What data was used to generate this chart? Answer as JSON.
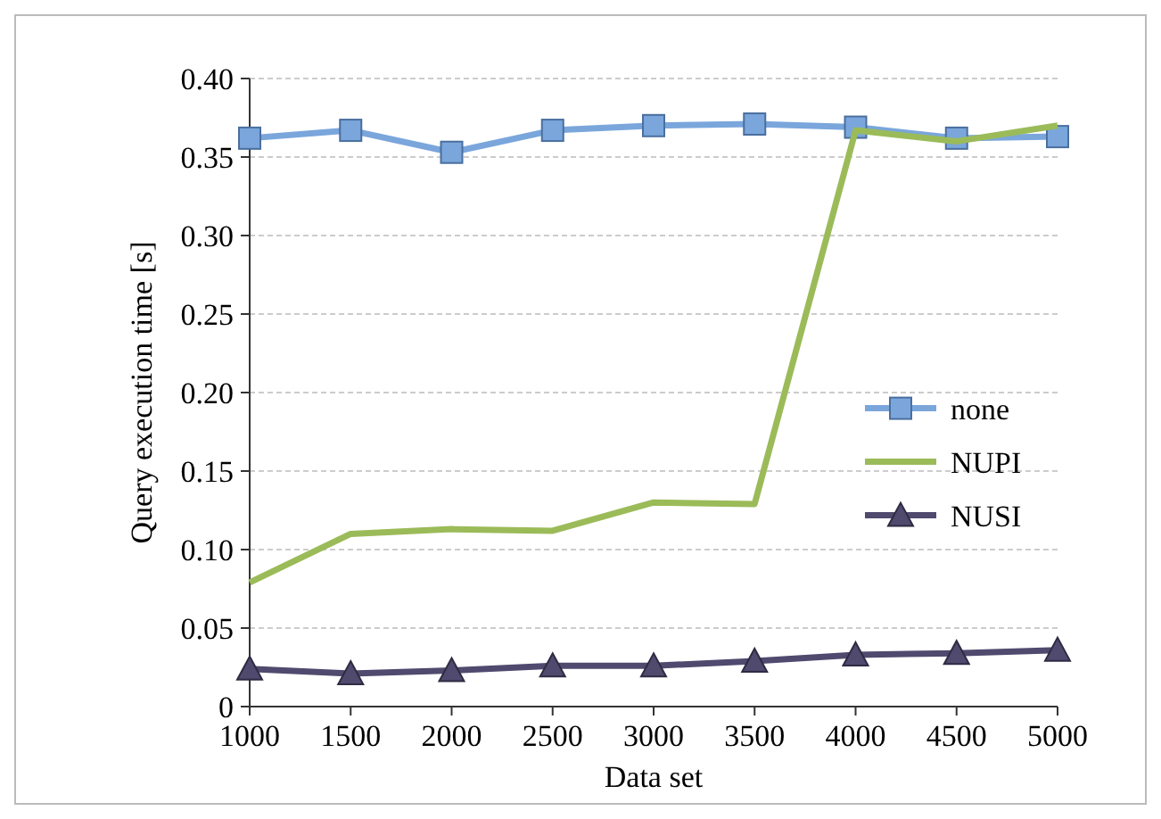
{
  "chart_data": {
    "type": "line",
    "xlabel": "Data set",
    "ylabel": "Query execution time [s]",
    "x": [
      1000,
      1500,
      2000,
      2500,
      3000,
      3500,
      4000,
      4500,
      5000
    ],
    "xlim": [
      1000,
      5000
    ],
    "xticks": [
      1000,
      1500,
      2000,
      2500,
      3000,
      3500,
      4000,
      4500,
      5000
    ],
    "ylim": [
      0,
      0.4
    ],
    "yticks": [
      {
        "value": 0,
        "label": "0"
      },
      {
        "value": 0.05,
        "label": "0.05"
      },
      {
        "value": 0.1,
        "label": "0.10"
      },
      {
        "value": 0.15,
        "label": "0.15"
      },
      {
        "value": 0.2,
        "label": "0.20"
      },
      {
        "value": 0.25,
        "label": "0.25"
      },
      {
        "value": 0.3,
        "label": "0.30"
      },
      {
        "value": 0.35,
        "label": "0.35"
      },
      {
        "value": 0.4,
        "label": "0.40"
      }
    ],
    "grid": "y",
    "legend": "right",
    "series": [
      {
        "name": "none",
        "color": "#7aa6dc",
        "marker": "square",
        "values": [
          0.362,
          0.367,
          0.353,
          0.367,
          0.37,
          0.371,
          0.369,
          0.362,
          0.363
        ]
      },
      {
        "name": "NUPI",
        "color": "#9bbb59",
        "marker": "none",
        "values": [
          0.079,
          0.11,
          0.113,
          0.112,
          0.13,
          0.129,
          0.367,
          0.36,
          0.37
        ]
      },
      {
        "name": "NUSI",
        "color": "#4f4a6e",
        "marker": "triangle",
        "values": [
          0.024,
          0.021,
          0.023,
          0.026,
          0.026,
          0.029,
          0.033,
          0.034,
          0.036
        ]
      }
    ]
  }
}
